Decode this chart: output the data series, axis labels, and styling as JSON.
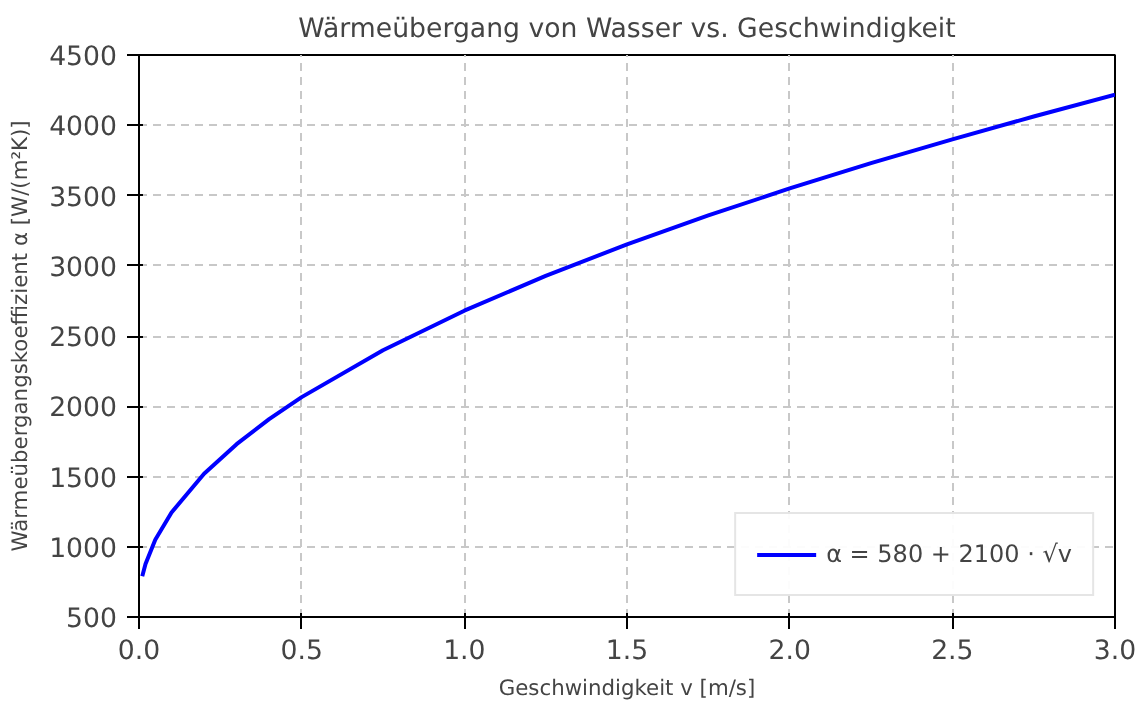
{
  "chart_data": {
    "type": "line",
    "title": "Wärmeübergang von Wasser vs. Geschwindigkeit",
    "xlabel": "Geschwindigkeit v [m/s]",
    "ylabel": "Wärmeübergangskoeffizient α [W/(m²K)]",
    "x": [
      0.01,
      0.02,
      0.05,
      0.1,
      0.2,
      0.3,
      0.4,
      0.5,
      0.75,
      1.0,
      1.25,
      1.5,
      1.75,
      2.0,
      2.25,
      2.5,
      2.75,
      3.0
    ],
    "series": [
      {
        "name": "α = 580 + 2100 · √v",
        "color": "#0000ff",
        "values": [
          790,
          877,
          1050,
          1244,
          1519,
          1730,
          1908,
          2065,
          2399,
          2680,
          2928,
          3152,
          3358,
          3550,
          3730,
          3900,
          4062,
          4217
        ]
      }
    ],
    "xlim": [
      0,
      3
    ],
    "ylim": [
      500,
      4500
    ],
    "xticks": [
      {
        "value": 0,
        "label": "0.0"
      },
      0.5,
      {
        "value": 1,
        "label": "1.0"
      },
      1.5,
      {
        "value": 2,
        "label": "2.0"
      },
      2.5,
      {
        "value": 3,
        "label": "3.0"
      }
    ],
    "yticks": [
      500,
      1000,
      1500,
      2000,
      2500,
      3000,
      3500,
      4000,
      4500
    ],
    "grid": true,
    "legend": "bottom right",
    "line_style": "solid",
    "marker": "none"
  }
}
